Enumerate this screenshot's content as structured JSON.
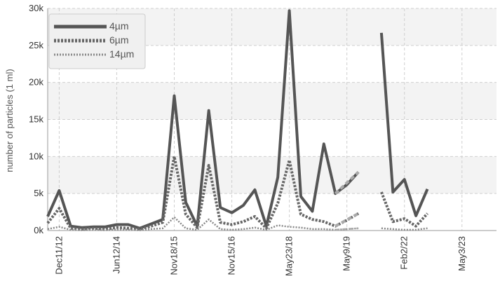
{
  "chart_data": {
    "type": "line",
    "title": "",
    "xlabel": "",
    "ylabel": "number of particles (1 ml)",
    "ylim": [
      0,
      30000
    ],
    "yticks": [
      {
        "value": 0,
        "label": "0k"
      },
      {
        "value": 5000,
        "label": "5k"
      },
      {
        "value": 10000,
        "label": "10k"
      },
      {
        "value": 15000,
        "label": "15k"
      },
      {
        "value": 20000,
        "label": "20k"
      },
      {
        "value": 25000,
        "label": "25k"
      },
      {
        "value": 30000,
        "label": "30k"
      }
    ],
    "x_index_range": [
      0,
      39
    ],
    "xticks": [
      {
        "index": 1,
        "label": "Dec11/12"
      },
      {
        "index": 6,
        "label": "Jun12/14"
      },
      {
        "index": 11,
        "label": "Nov18/15"
      },
      {
        "index": 16,
        "label": "Nov15/16"
      },
      {
        "index": 21,
        "label": "May23/18"
      },
      {
        "index": 26,
        "label": "May9/19"
      },
      {
        "index": 31,
        "label": "Feb2/22"
      },
      {
        "index": 36,
        "label": "May3/23"
      }
    ],
    "grid": true,
    "legend_position": "top-left",
    "series": [
      {
        "name": "4µm",
        "color": "#555555",
        "style": "solid",
        "values": [
          1900,
          5400,
          600,
          400,
          500,
          500,
          800,
          800,
          300,
          900,
          1500,
          18200,
          3800,
          600,
          16200,
          3100,
          2400,
          3400,
          5500,
          600,
          7200,
          29700,
          4600,
          2600,
          11700,
          5000,
          6200,
          7900,
          null,
          26700,
          5200,
          6900,
          2000,
          5600,
          null,
          null,
          null,
          null,
          null,
          null
        ],
        "gaps": [
          [
            25,
            27
          ]
        ]
      },
      {
        "name": "6µm",
        "color": "#666666",
        "style": "dotted",
        "values": [
          1000,
          3000,
          300,
          200,
          300,
          200,
          400,
          300,
          200,
          600,
          1100,
          10000,
          2200,
          400,
          8800,
          1100,
          800,
          1200,
          1900,
          300,
          3700,
          9500,
          2200,
          1500,
          1200,
          600,
          1400,
          2300,
          null,
          5200,
          1200,
          1600,
          600,
          2300,
          null,
          null,
          null,
          null,
          null,
          null
        ],
        "gaps": [
          [
            25,
            27
          ]
        ]
      },
      {
        "name": "14µm",
        "color": "#888888",
        "style": "dotted-thin",
        "values": [
          200,
          500,
          100,
          50,
          100,
          50,
          150,
          100,
          50,
          200,
          300,
          1800,
          300,
          100,
          1500,
          200,
          100,
          200,
          400,
          100,
          700,
          500,
          400,
          200,
          200,
          100,
          200,
          300,
          null,
          300,
          200,
          100,
          100,
          300,
          null,
          null,
          null,
          null,
          null,
          null
        ],
        "gaps": [
          [
            25,
            27
          ]
        ]
      }
    ]
  }
}
